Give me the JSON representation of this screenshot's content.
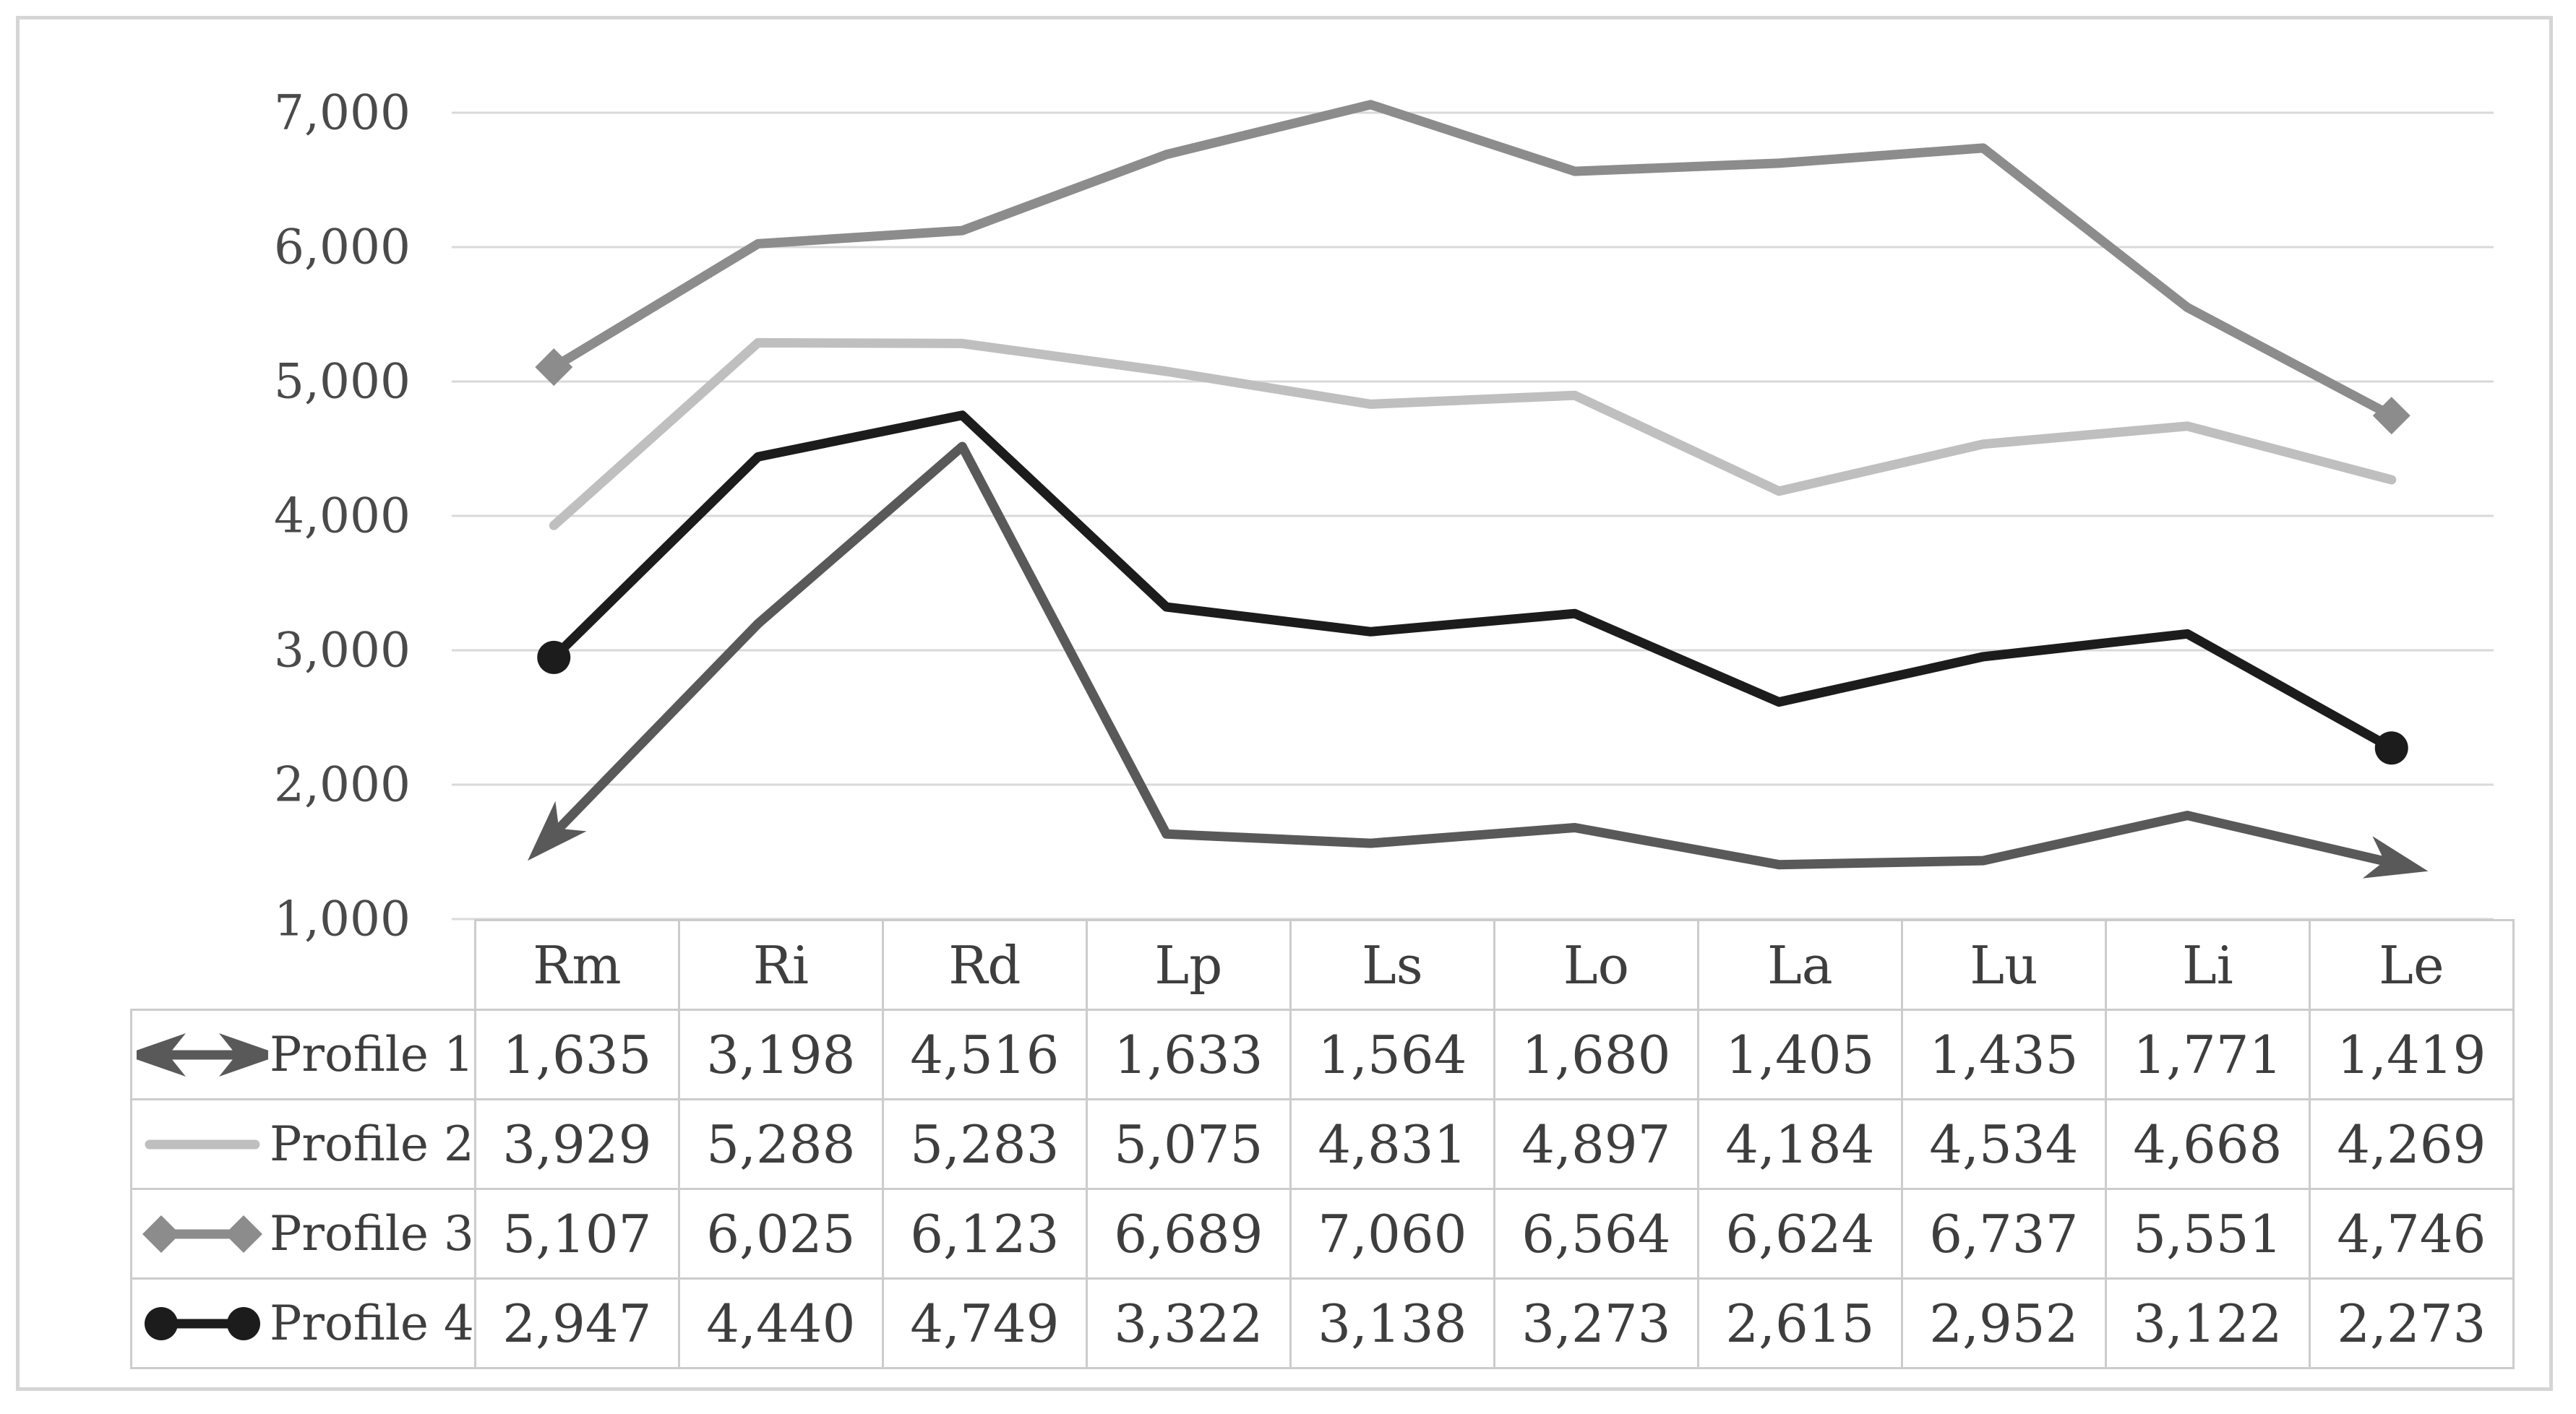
{
  "chart_data": {
    "type": "line",
    "title": "",
    "xlabel": "",
    "ylabel": "",
    "categories": [
      "Rm",
      "Ri",
      "Rd",
      "Lp",
      "Ls",
      "Lo",
      "La",
      "Lu",
      "Li",
      "Le"
    ],
    "series": [
      {
        "name": "Profile 1",
        "color": "#595959",
        "marker": "arrow",
        "values": [
          1635,
          3198,
          4516,
          1633,
          1564,
          1680,
          1405,
          1435,
          1771,
          1419
        ],
        "values_display": [
          "1,635",
          "3,198",
          "4,516",
          "1,633",
          "1,564",
          "1,680",
          "1,405",
          "1,435",
          "1,771",
          "1,419"
        ]
      },
      {
        "name": "Profile 2",
        "color": "#bfbfbf",
        "marker": "none",
        "values": [
          3929,
          5288,
          5283,
          5075,
          4831,
          4897,
          4184,
          4534,
          4668,
          4269
        ],
        "values_display": [
          "3,929",
          "5,288",
          "5,283",
          "5,075",
          "4,831",
          "4,897",
          "4,184",
          "4,534",
          "4,668",
          "4,269"
        ]
      },
      {
        "name": "Profile 3",
        "color": "#8c8c8c",
        "marker": "diamond",
        "values": [
          5107,
          6025,
          6123,
          6689,
          7060,
          6564,
          6624,
          6737,
          5551,
          4746
        ],
        "values_display": [
          "5,107",
          "6,025",
          "6,123",
          "6,689",
          "7,060",
          "6,564",
          "6,624",
          "6,737",
          "5,551",
          "4,746"
        ]
      },
      {
        "name": "Profile 4",
        "color": "#1c1c1c",
        "marker": "circle",
        "values": [
          2947,
          4440,
          4749,
          3322,
          3138,
          3273,
          2615,
          2952,
          3122,
          2273
        ],
        "values_display": [
          "2,947",
          "4,440",
          "4,749",
          "3,322",
          "3,138",
          "3,273",
          "2,615",
          "2,952",
          "3,122",
          "2,273"
        ]
      }
    ],
    "ylim": [
      1000,
      7000
    ],
    "y_tick_values": [
      7000,
      6000,
      5000,
      4000,
      3000,
      2000,
      1000
    ],
    "y_ticks": [
      "7,000",
      "6,000",
      "5,000",
      "4,000",
      "3,000",
      "2,000",
      "1,000"
    ],
    "grid": true,
    "legend_position": "table-left"
  },
  "colors": {
    "background": "#ffffff",
    "figure_border": "#d5d5d5",
    "gridline": "#d9d9d9",
    "axis_text": "#4a4a4a",
    "table_border": "#cccccc",
    "table_text": "#3e3e3e"
  }
}
